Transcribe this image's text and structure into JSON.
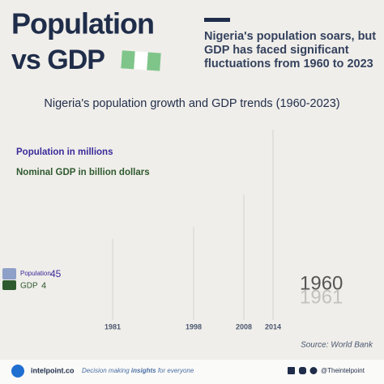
{
  "header": {
    "title_line1": "Population",
    "title_line2": "vs GDP",
    "subtitle": [
      "Nigeria's population soars, but",
      "GDP has faced significant",
      "fluctuations from 1960 to 2023"
    ]
  },
  "chart": {
    "title": "Nigeria's population growth and GDP trends (1960-2023)",
    "legend": [
      "Population in millions",
      "Nominal GDP in billion dollars"
    ],
    "markers": [
      "1981",
      "1998",
      "2008",
      "2014"
    ],
    "rows": [
      {
        "label": "Population",
        "value": "45"
      },
      {
        "label": "GDP",
        "value": "4"
      }
    ],
    "year": "1960",
    "next_year": "1961",
    "source": "Source: World Bank"
  },
  "footer": {
    "site": "intelpoint.co",
    "tagline": [
      "Decision making ",
      "insights",
      " for everyone"
    ],
    "handle": "@Theintelpoint"
  }
}
